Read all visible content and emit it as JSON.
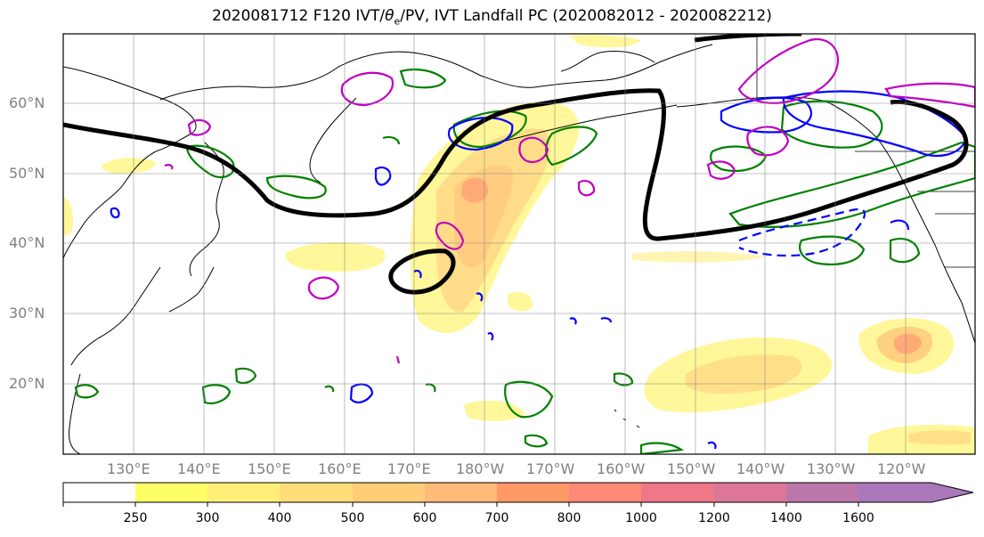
{
  "title": {
    "prefix": "2020081712 F120 IVT/",
    "theta": "θ",
    "theta_sub": "e",
    "suffix": "/PV, IVT Landfall PC (2020082012 - 2020082212)"
  },
  "lat_labels": [
    "60°N",
    "50°N",
    "40°N",
    "30°N",
    "20°N"
  ],
  "lon_labels": [
    "130°E",
    "140°E",
    "150°E",
    "160°E",
    "170°E",
    "180°W",
    "170°W",
    "160°W",
    "150°W",
    "140°W",
    "130°W",
    "120°W"
  ],
  "colorbar": {
    "ticks": [
      "250",
      "300",
      "400",
      "500",
      "600",
      "700",
      "800",
      "1000",
      "1200",
      "1400",
      "1600"
    ],
    "colors": [
      "#ffffff",
      "#ffff66",
      "#ffee77",
      "#ffdd77",
      "#ffcc77",
      "#ffbb77",
      "#ff9966",
      "#ff8877",
      "#ee7788",
      "#dd7799",
      "#bb77aa",
      "#aa77bb"
    ]
  },
  "legend_colors": {
    "pv": "#000000",
    "theta_e": "#008000",
    "ivt_pc_positive": "#0000ff",
    "ivt_pc_negative": "#c000c0"
  }
}
